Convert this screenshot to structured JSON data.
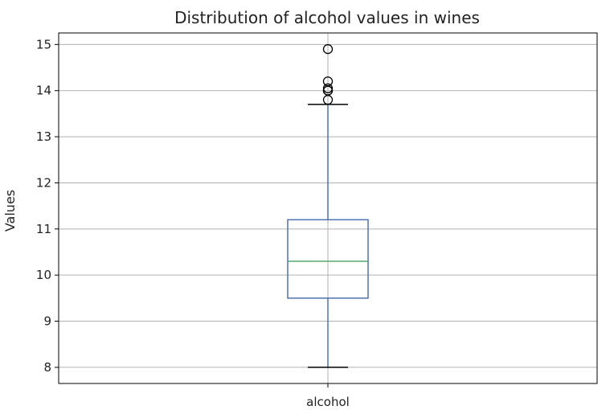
{
  "chart_data": {
    "type": "box",
    "title": "Distribution of alcohol values in wines",
    "xlabel": "",
    "ylabel": "Values",
    "categories": [
      "alcohol"
    ],
    "ylim": [
      7.65,
      15.25
    ],
    "yticks": [
      8,
      9,
      10,
      11,
      12,
      13,
      14,
      15
    ],
    "grid": true,
    "box": {
      "whisker_low": 8.0,
      "q1": 9.5,
      "median": 10.3,
      "q3": 11.2,
      "whisker_high": 13.7
    },
    "outliers": [
      13.8,
      14.0,
      14.0,
      14.05,
      14.2,
      14.9
    ],
    "colors": {
      "box": "#4c72b0",
      "median": "#55a868",
      "whisker_caps": "#000000",
      "grid": "#b0b0b0"
    }
  }
}
